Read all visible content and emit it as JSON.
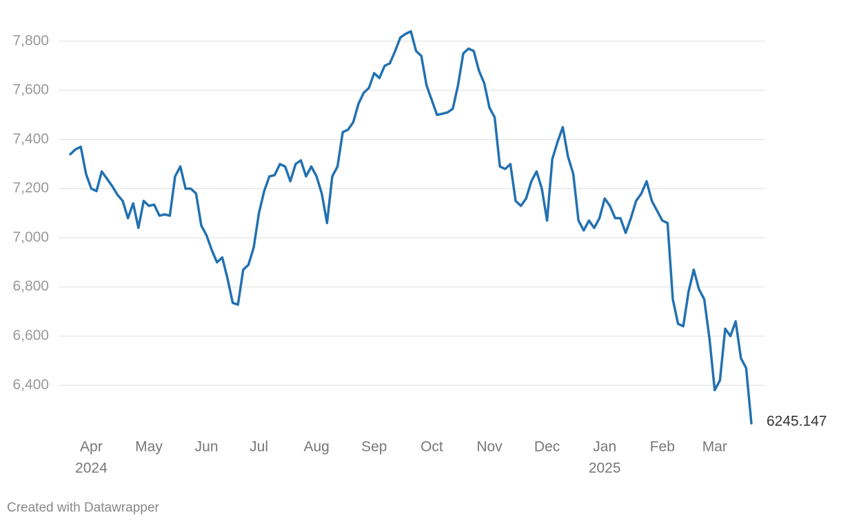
{
  "chart_data": {
    "type": "line",
    "categories": [
      null,
      null,
      null,
      null,
      "Apr",
      null,
      null,
      null,
      null,
      null,
      null,
      null,
      null,
      null,
      null,
      "May",
      null,
      null,
      null,
      null,
      null,
      null,
      null,
      null,
      null,
      null,
      "Jun",
      null,
      null,
      null,
      null,
      null,
      null,
      null,
      null,
      null,
      "Jul",
      null,
      null,
      null,
      null,
      null,
      null,
      null,
      null,
      null,
      null,
      "Aug",
      null,
      null,
      null,
      null,
      null,
      null,
      null,
      null,
      null,
      null,
      "Sep",
      null,
      null,
      null,
      null,
      null,
      null,
      null,
      null,
      null,
      null,
      "Oct",
      null,
      null,
      null,
      null,
      null,
      null,
      null,
      null,
      null,
      null,
      "Nov",
      null,
      null,
      null,
      null,
      null,
      null,
      null,
      null,
      null,
      null,
      "Dec",
      null,
      null,
      null,
      null,
      null,
      null,
      null,
      null,
      null,
      null,
      "Jan",
      null,
      null,
      null,
      null,
      null,
      null,
      null,
      null,
      null,
      null,
      "Feb",
      null,
      null,
      null,
      null,
      null,
      null,
      null,
      null,
      null,
      "Mar",
      null,
      null,
      null,
      null,
      null,
      null,
      null
    ],
    "category_years": [
      null,
      null,
      null,
      null,
      "2024",
      null,
      null,
      null,
      null,
      null,
      null,
      null,
      null,
      null,
      null,
      null,
      null,
      null,
      null,
      null,
      null,
      null,
      null,
      null,
      null,
      null,
      null,
      null,
      null,
      null,
      null,
      null,
      null,
      null,
      null,
      null,
      null,
      null,
      null,
      null,
      null,
      null,
      null,
      null,
      null,
      null,
      null,
      null,
      null,
      null,
      null,
      null,
      null,
      null,
      null,
      null,
      null,
      null,
      null,
      null,
      null,
      null,
      null,
      null,
      null,
      null,
      null,
      null,
      null,
      null,
      null,
      null,
      null,
      null,
      null,
      null,
      null,
      null,
      null,
      null,
      null,
      null,
      null,
      null,
      null,
      null,
      null,
      null,
      null,
      null,
      null,
      null,
      null,
      null,
      null,
      null,
      null,
      null,
      null,
      null,
      null,
      null,
      "2025",
      null,
      null,
      null,
      null,
      null,
      null,
      null,
      null,
      null,
      null,
      null,
      null,
      null,
      null,
      null,
      null,
      null,
      null,
      null,
      null,
      null,
      null,
      null,
      null,
      null,
      null,
      null,
      null,
      null
    ],
    "series": [
      {
        "color": "#2271b1",
        "values": [
          7340,
          7360,
          7370,
          7260,
          7200,
          7190,
          7270,
          7240,
          7210,
          7175,
          7150,
          7080,
          7140,
          7040,
          7150,
          7130,
          7135,
          7090,
          7095,
          7090,
          7250,
          7290,
          7200,
          7200,
          7180,
          7050,
          7010,
          6950,
          6900,
          6920,
          6835,
          6735,
          6728,
          6870,
          6890,
          6960,
          7100,
          7190,
          7250,
          7255,
          7300,
          7290,
          7230,
          7300,
          7315,
          7250,
          7290,
          7250,
          7180,
          7060,
          7250,
          7290,
          7430,
          7440,
          7470,
          7545,
          7590,
          7610,
          7670,
          7650,
          7700,
          7710,
          7760,
          7815,
          7830,
          7840,
          7760,
          7740,
          7620,
          7560,
          7500,
          7505,
          7510,
          7525,
          7620,
          7750,
          7770,
          7760,
          7680,
          7630,
          7530,
          7490,
          7290,
          7280,
          7300,
          7150,
          7130,
          7160,
          7230,
          7270,
          7200,
          7070,
          7320,
          7390,
          7450,
          7330,
          7260,
          7070,
          7030,
          7070,
          7040,
          7080,
          7160,
          7130,
          7080,
          7080,
          7020,
          7080,
          7150,
          7180,
          7230,
          7150,
          7110,
          7070,
          7060,
          6750,
          6650,
          6640,
          6780,
          6870,
          6790,
          6750,
          6590,
          6380,
          6420,
          6630,
          6600,
          6660,
          6510,
          6470,
          6245.147
        ]
      }
    ],
    "ylim": [
      6200,
      7920
    ],
    "yticks": [
      {
        "value": 6400,
        "label": "6,400"
      },
      {
        "value": 6600,
        "label": "6,600"
      },
      {
        "value": 6800,
        "label": "6,800"
      },
      {
        "value": 7000,
        "label": "7,000"
      },
      {
        "value": 7200,
        "label": "7,200"
      },
      {
        "value": 7400,
        "label": "7,400"
      },
      {
        "value": 7600,
        "label": "7,600"
      },
      {
        "value": 7800,
        "label": "7,800"
      }
    ],
    "grid": true,
    "credit": "Created with Datawrapper"
  }
}
